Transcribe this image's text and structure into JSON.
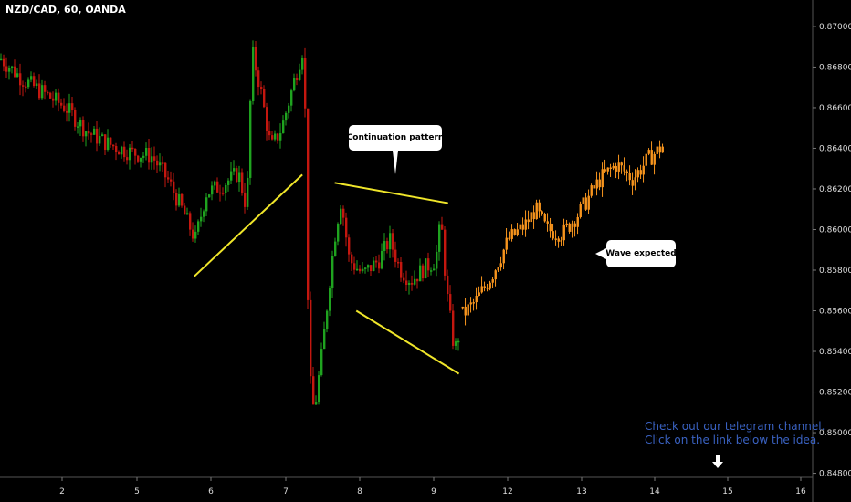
{
  "symbol": "NZD/CAD, 60, OANDA",
  "callouts": {
    "pattern": "Continuation pattern",
    "wave": "Wave expected"
  },
  "promo": {
    "line1": "Check out our telegram channel.",
    "line2": "Click on the link below the idea."
  },
  "colors": {
    "background": "#000000",
    "up": "#1fa31f",
    "down": "#c4170f",
    "projection": "#f7941d",
    "trendline": "#f0e62a",
    "promo_text": "#3a62c2"
  },
  "icons": {
    "promo_arrow": "arrow-down-icon"
  },
  "chart_data": {
    "type": "candlestick",
    "title": "NZD/CAD, 60, OANDA",
    "x_ticks": [
      "2",
      "5",
      "6",
      "7",
      "8",
      "9",
      "12",
      "13",
      "14",
      "15",
      "16"
    ],
    "y_ticks": [
      "0.84800",
      "0.85000",
      "0.85200",
      "0.85400",
      "0.85600",
      "0.85800",
      "0.86000",
      "0.86200",
      "0.86400",
      "0.86600",
      "0.86800",
      "0.87000"
    ],
    "ylim": [
      0.8478,
      0.8713
    ],
    "x_domain": [
      1.2,
      16.1
    ],
    "price_path": [
      [
        1.2,
        0.8684
      ],
      [
        1.6,
        0.8674
      ],
      [
        2.0,
        0.8667
      ],
      [
        2.4,
        0.866
      ],
      [
        2.8,
        0.8648
      ],
      [
        3.2,
        0.8642
      ],
      [
        3.6,
        0.8638
      ],
      [
        4.0,
        0.8636
      ],
      [
        4.3,
        0.8624
      ],
      [
        4.55,
        0.861
      ],
      [
        4.8,
        0.8595
      ],
      [
        5.0,
        0.8618
      ],
      [
        5.3,
        0.8622
      ],
      [
        5.6,
        0.8628
      ],
      [
        5.75,
        0.861
      ],
      [
        5.85,
        0.8688
      ],
      [
        6.0,
        0.867
      ],
      [
        6.2,
        0.864
      ],
      [
        6.4,
        0.865
      ],
      [
        6.6,
        0.867
      ],
      [
        6.8,
        0.869
      ],
      [
        6.85,
        0.864
      ],
      [
        6.9,
        0.853
      ],
      [
        7.0,
        0.851
      ],
      [
        7.15,
        0.854
      ],
      [
        7.3,
        0.8578
      ],
      [
        7.4,
        0.86
      ],
      [
        7.5,
        0.8615
      ],
      [
        7.65,
        0.8585
      ],
      [
        7.9,
        0.8578
      ],
      [
        8.2,
        0.8585
      ],
      [
        8.4,
        0.8595
      ],
      [
        8.6,
        0.858
      ],
      [
        8.8,
        0.8575
      ],
      [
        9.0,
        0.858
      ],
      [
        9.25,
        0.8585
      ],
      [
        9.35,
        0.8605
      ],
      [
        9.45,
        0.857
      ],
      [
        9.6,
        0.854
      ],
      [
        9.7,
        0.855
      ]
    ],
    "projection_path": [
      [
        9.75,
        0.8558
      ],
      [
        10.0,
        0.8565
      ],
      [
        10.3,
        0.8578
      ],
      [
        10.6,
        0.8595
      ],
      [
        10.9,
        0.8602
      ],
      [
        11.1,
        0.861
      ],
      [
        11.3,
        0.86
      ],
      [
        11.6,
        0.8598
      ],
      [
        11.9,
        0.8608
      ],
      [
        12.3,
        0.8625
      ],
      [
        12.6,
        0.8632
      ],
      [
        12.9,
        0.8625
      ],
      [
        13.2,
        0.8635
      ],
      [
        13.5,
        0.8642
      ]
    ],
    "trendlines": [
      {
        "from": [
          4.8,
          0.8577
        ],
        "to": [
          6.8,
          0.8627
        ]
      },
      {
        "from": [
          7.4,
          0.8623
        ],
        "to": [
          9.5,
          0.8613
        ]
      },
      {
        "from": [
          7.8,
          0.856
        ],
        "to": [
          9.7,
          0.8529
        ]
      }
    ],
    "grid": false
  }
}
